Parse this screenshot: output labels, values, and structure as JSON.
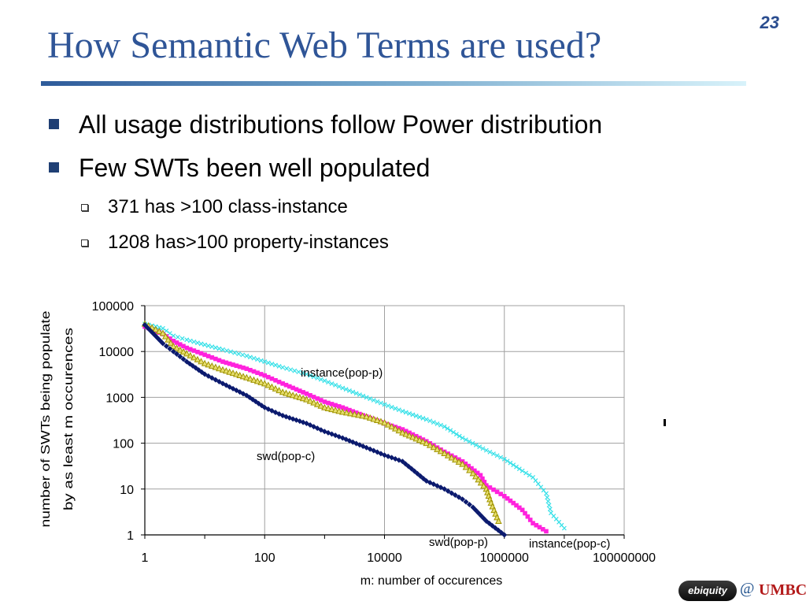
{
  "slide": {
    "number": "23",
    "title": "How Semantic Web Terms are used?",
    "bullets": [
      "All usage distributions follow Power distribution",
      "Few SWTs been well populated"
    ],
    "sub_bullets": [
      "371 has >100 class-instance",
      "1208 has>100 property-instances"
    ]
  },
  "footer": {
    "logo_text": "ebiquity",
    "at": "@",
    "org": "UMBC"
  },
  "chart_data": {
    "type": "scatter",
    "title": "",
    "xlabel": "m: number of occurences",
    "ylabel": "number of SWTs being populated by as least m occurences",
    "ylabel_lines": [
      "number of SWTs being populate",
      "by as least m occurences"
    ],
    "x_scale": "log",
    "y_scale": "log",
    "xlim": [
      1,
      100000000
    ],
    "ylim": [
      1,
      100000
    ],
    "x_ticks": [
      "1",
      "100",
      "10000",
      "1000000",
      "100000000"
    ],
    "y_ticks": [
      "100000",
      "10000",
      "1000",
      "100",
      "10",
      "1"
    ],
    "grid": true,
    "legend": "none",
    "series": [
      {
        "name": "instance(pop-p)",
        "color": "#33e0e8",
        "marker": "x",
        "points": [
          [
            1,
            40000
          ],
          [
            2,
            32000
          ],
          [
            3,
            22000
          ],
          [
            5,
            18000
          ],
          [
            10,
            14000
          ],
          [
            20,
            11000
          ],
          [
            50,
            8000
          ],
          [
            100,
            6000
          ],
          [
            200,
            4500
          ],
          [
            500,
            3200
          ],
          [
            1000,
            2300
          ],
          [
            2000,
            1600
          ],
          [
            5000,
            1000
          ],
          [
            10000,
            700
          ],
          [
            20000,
            500
          ],
          [
            50000,
            330
          ],
          [
            100000,
            230
          ],
          [
            200000,
            130
          ],
          [
            500000,
            70
          ],
          [
            1000000,
            45
          ],
          [
            2000000,
            25
          ],
          [
            3000000,
            18
          ],
          [
            5000000,
            8
          ],
          [
            6000000,
            3
          ],
          [
            10000000,
            1.4
          ]
        ]
      },
      {
        "name": "instance(pop-c)",
        "color": "#ff22dd",
        "marker": "square",
        "points": [
          [
            1,
            35000
          ],
          [
            2,
            24000
          ],
          [
            3,
            17000
          ],
          [
            5,
            12000
          ],
          [
            10,
            8500
          ],
          [
            20,
            6000
          ],
          [
            50,
            4200
          ],
          [
            100,
            3000
          ],
          [
            200,
            2000
          ],
          [
            500,
            1200
          ],
          [
            1000,
            800
          ],
          [
            2000,
            600
          ],
          [
            5000,
            380
          ],
          [
            10000,
            270
          ],
          [
            20000,
            200
          ],
          [
            50000,
            110
          ],
          [
            100000,
            65
          ],
          [
            200000,
            40
          ],
          [
            400000,
            20
          ],
          [
            500000,
            12
          ],
          [
            1000000,
            7
          ],
          [
            2000000,
            3.5
          ],
          [
            3000000,
            1.8
          ],
          [
            5000000,
            1.2
          ]
        ]
      },
      {
        "name": "swd(pop-p)",
        "color": "#a09400",
        "marker": "triangle",
        "points": [
          [
            1,
            40000
          ],
          [
            2,
            25000
          ],
          [
            3,
            13000
          ],
          [
            5,
            9000
          ],
          [
            10,
            5500
          ],
          [
            20,
            4000
          ],
          [
            50,
            2700
          ],
          [
            100,
            2000
          ],
          [
            200,
            1300
          ],
          [
            500,
            900
          ],
          [
            1000,
            600
          ],
          [
            2000,
            480
          ],
          [
            5000,
            380
          ],
          [
            10000,
            280
          ],
          [
            20000,
            170
          ],
          [
            50000,
            100
          ],
          [
            100000,
            60
          ],
          [
            200000,
            35
          ],
          [
            300000,
            22
          ],
          [
            500000,
            10
          ],
          [
            600000,
            5
          ],
          [
            800000,
            2
          ]
        ]
      },
      {
        "name": "swd(pop-c)",
        "color": "#0b1a6e",
        "marker": "diamond",
        "points": [
          [
            1,
            38000
          ],
          [
            2,
            15000
          ],
          [
            3,
            10000
          ],
          [
            5,
            6000
          ],
          [
            10,
            3200
          ],
          [
            20,
            2000
          ],
          [
            50,
            1100
          ],
          [
            100,
            600
          ],
          [
            200,
            400
          ],
          [
            500,
            270
          ],
          [
            1000,
            180
          ],
          [
            2000,
            130
          ],
          [
            5000,
            80
          ],
          [
            10000,
            55
          ],
          [
            20000,
            40
          ],
          [
            50000,
            15
          ],
          [
            100000,
            10
          ],
          [
            200000,
            6
          ],
          [
            300000,
            4
          ],
          [
            500000,
            2
          ],
          [
            1000000,
            1
          ]
        ]
      }
    ]
  }
}
